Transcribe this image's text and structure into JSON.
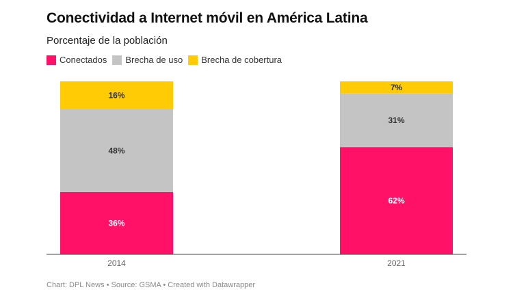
{
  "header": {
    "title": "Conectividad a Internet móvil en América Latina",
    "subtitle": "Porcentaje de la población"
  },
  "legend": [
    {
      "label": "Conectados",
      "color": "#ff1168"
    },
    {
      "label": "Brecha de uso",
      "color": "#c4c4c4"
    },
    {
      "label": "Brecha de cobertura",
      "color": "#ffcb05"
    }
  ],
  "footer": {
    "text": "Chart: DPL News • Source: GSMA • Created with Datawrapper"
  },
  "chart_data": {
    "type": "bar",
    "stacked": true,
    "title": "Conectividad a Internet móvil en América Latina",
    "subtitle": "Porcentaje de la población",
    "xlabel": "",
    "ylabel": "",
    "categories": [
      "2014",
      "2021"
    ],
    "series": [
      {
        "name": "Conectados",
        "color": "#ff1168",
        "label_color": "#ffffff",
        "values": [
          36,
          62
        ],
        "labels": [
          "36%",
          "62%"
        ]
      },
      {
        "name": "Brecha de uso",
        "color": "#c4c4c4",
        "label_color": "#333333",
        "values": [
          48,
          31
        ],
        "labels": [
          "48%",
          "31%"
        ]
      },
      {
        "name": "Brecha de cobertura",
        "color": "#ffcb05",
        "label_color": "#333333",
        "values": [
          16,
          7
        ],
        "labels": [
          "16%",
          "7%"
        ]
      }
    ],
    "ylim": [
      0,
      100
    ],
    "grid": false,
    "legend_position": "top-left",
    "source": "Chart: DPL News • Source: GSMA • Created with Datawrapper"
  }
}
